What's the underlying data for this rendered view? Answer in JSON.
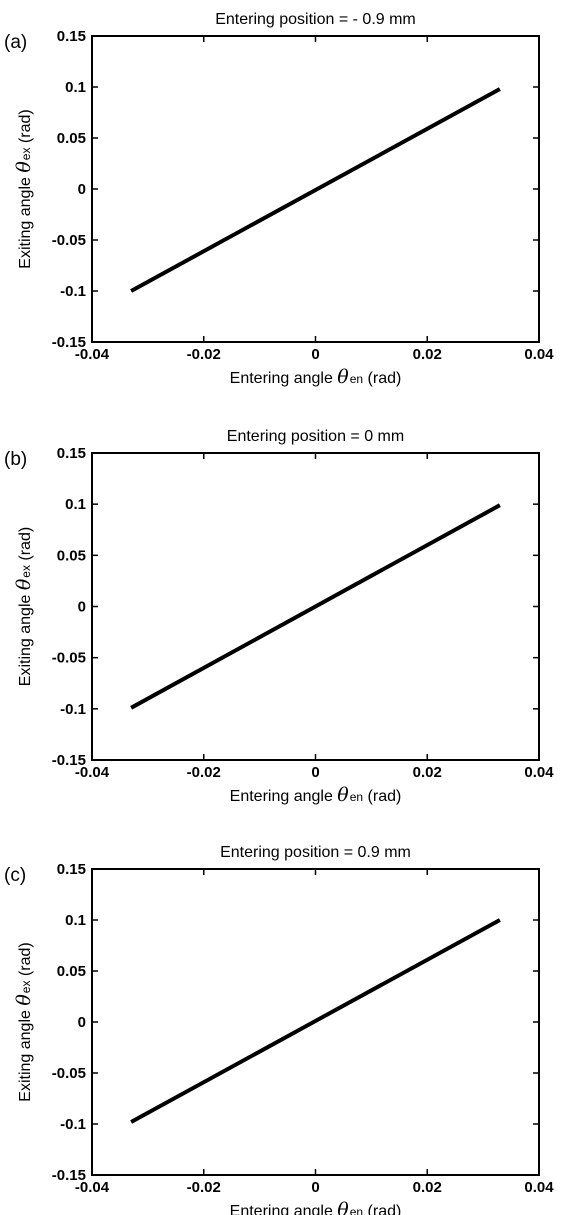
{
  "chart_data": [
    {
      "type": "line",
      "panel_label": "(a)",
      "title": "Entering position = - 0.9 mm",
      "xlabel": {
        "prefix": "Entering angle ",
        "symbol": "θ",
        "subscript": "en",
        "suffix": " (rad)"
      },
      "ylabel": {
        "prefix": "Exiting angle ",
        "symbol": "θ",
        "subscript": "ex",
        "suffix": " (rad)"
      },
      "xlim": [
        -0.04,
        0.04
      ],
      "ylim": [
        -0.15,
        0.15
      ],
      "xticks": [
        "-0.04",
        "-0.02",
        "0",
        "0.02",
        "0.04"
      ],
      "yticks": [
        "-0.15",
        "-0.1",
        "-0.05",
        "0",
        "0.05",
        "0.1",
        "0.15"
      ],
      "grid": false,
      "series": [
        {
          "x": [
            -0.033,
            0.033
          ],
          "y": [
            -0.1,
            0.098
          ]
        }
      ]
    },
    {
      "type": "line",
      "panel_label": "(b)",
      "title": "Entering position = 0 mm",
      "xlabel": {
        "prefix": "Entering angle ",
        "symbol": "θ",
        "subscript": "en",
        "suffix": " (rad)"
      },
      "ylabel": {
        "prefix": "Exiting angle ",
        "symbol": "θ",
        "subscript": "ex",
        "suffix": " (rad)"
      },
      "xlim": [
        -0.04,
        0.04
      ],
      "ylim": [
        -0.15,
        0.15
      ],
      "xticks": [
        "-0.04",
        "-0.02",
        "0",
        "0.02",
        "0.04"
      ],
      "yticks": [
        "-0.15",
        "-0.1",
        "-0.05",
        "0",
        "0.05",
        "0.1",
        "0.15"
      ],
      "grid": false,
      "series": [
        {
          "x": [
            -0.033,
            0.033
          ],
          "y": [
            -0.099,
            0.099
          ]
        }
      ]
    },
    {
      "type": "line",
      "panel_label": "(c)",
      "title": "Entering position = 0.9 mm",
      "xlabel": {
        "prefix": "Entering angle ",
        "symbol": "θ",
        "subscript": "en",
        "suffix": " (rad)"
      },
      "ylabel": {
        "prefix": "Exiting angle ",
        "symbol": "θ",
        "subscript": "ex",
        "suffix": " (rad)"
      },
      "xlim": [
        -0.04,
        0.04
      ],
      "ylim": [
        -0.15,
        0.15
      ],
      "xticks": [
        "-0.04",
        "-0.02",
        "0",
        "0.02",
        "0.04"
      ],
      "yticks": [
        "-0.15",
        "-0.1",
        "-0.05",
        "0",
        "0.05",
        "0.1",
        "0.15"
      ],
      "grid": false,
      "series": [
        {
          "x": [
            -0.033,
            0.033
          ],
          "y": [
            -0.098,
            0.1
          ]
        }
      ]
    }
  ]
}
